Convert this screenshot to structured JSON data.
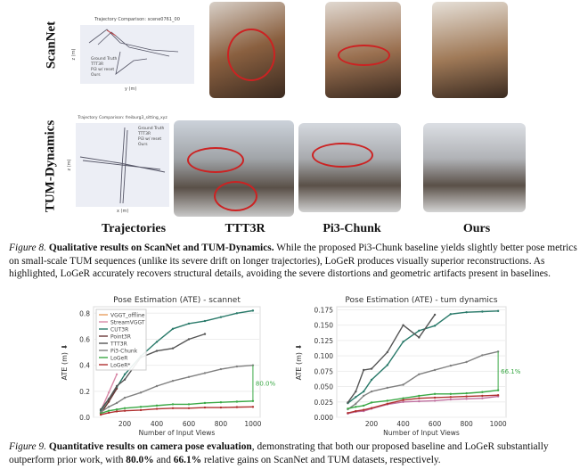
{
  "figure8": {
    "row_labels": [
      "ScanNet",
      "TUM-Dynamics"
    ],
    "col_labels": [
      "Trajectories",
      "TTT3R",
      "Pi3-Chunk",
      "Ours"
    ],
    "traj1": {
      "title": "Trajectory Comparison: scene0761_00",
      "xlabel": "y (m)",
      "ylabel": "z (m)",
      "legend": [
        "Ground Truth",
        "TTT3R",
        "Pi3 w/ reset",
        "Ours"
      ]
    },
    "traj2": {
      "title": "Trajectory Comparison: freiburg3_sitting_xyz",
      "xlabel": "x (m)",
      "ylabel": "z (m)",
      "legend": [
        "Ground Truth",
        "TTT3R",
        "Pi3 w/ reset",
        "Ours"
      ]
    },
    "caption_label": "Figure 8.",
    "caption_bold": "Qualitative results on ScanNet and TUM-Dynamics.",
    "caption_text": "While the proposed Pi3-Chunk baseline yields slightly better pose metrics on small-scale TUM sequences (unlike its severe drift on longer trajectories), LoGeR produces visually superior reconstructions. As highlighted, LoGeR accurately recovers structural details, avoiding the severe distortions and geometric artifacts present in baselines."
  },
  "figure9": {
    "caption_label": "Figure 9.",
    "caption_bold": "Quantitative results on camera pose evaluation",
    "caption_text1": ", demonstrating that both our proposed baseline and LoGeR substantially outperform prior work, with ",
    "gain1": "80.0%",
    "caption_text2": " and ",
    "gain2": "66.1%",
    "caption_text3": " relative gains on ScanNet and TUM datasets, respectively."
  },
  "chart_data": [
    {
      "type": "line",
      "title": "Pose Estimation (ATE) - scannet",
      "xlabel": "Number of Input Views",
      "ylabel": "ATE (m) ⬇",
      "xticks": [
        200,
        400,
        600,
        800,
        1000
      ],
      "yticks": [
        0.0,
        0.2,
        0.4,
        0.6,
        0.8
      ],
      "xlim": [
        5,
        1045
      ],
      "ylim": [
        0,
        0.85
      ],
      "legend": "top-left",
      "annotation": "80.0%",
      "series": [
        {
          "name": "VGGT_offline",
          "color": "#e8a060",
          "x": [
            50,
            100
          ],
          "y": [
            0.03,
            0.12
          ]
        },
        {
          "name": "StreamVGGT",
          "color": "#d88aa8",
          "x": [
            50,
            100,
            150
          ],
          "y": [
            0.05,
            0.19,
            0.33
          ]
        },
        {
          "name": "CUT3R",
          "color": "#2a7a6a",
          "x": [
            50,
            100,
            150,
            200,
            300,
            400,
            500,
            600,
            700,
            800,
            900,
            1000
          ],
          "y": [
            0.05,
            0.14,
            0.23,
            0.33,
            0.47,
            0.58,
            0.68,
            0.72,
            0.74,
            0.77,
            0.8,
            0.82
          ]
        },
        {
          "name": "Point3R",
          "color": "#6a3838",
          "x": [
            50,
            100,
            150
          ],
          "y": [
            0.03,
            0.12,
            0.22
          ]
        },
        {
          "name": "TTT3R",
          "color": "#555555",
          "x": [
            50,
            100,
            150,
            200,
            300,
            400,
            500,
            600,
            700
          ],
          "y": [
            0.06,
            0.14,
            0.24,
            0.29,
            0.46,
            0.51,
            0.53,
            0.6,
            0.64
          ]
        },
        {
          "name": "Pi3-Chunk",
          "color": "#808080",
          "x": [
            50,
            100,
            150,
            200,
            300,
            400,
            500,
            600,
            700,
            800,
            900,
            1000
          ],
          "y": [
            0.04,
            0.08,
            0.11,
            0.15,
            0.19,
            0.24,
            0.28,
            0.31,
            0.34,
            0.37,
            0.39,
            0.4
          ]
        },
        {
          "name": "LoGeR",
          "color": "#3aa845",
          "x": [
            50,
            100,
            150,
            200,
            300,
            400,
            500,
            600,
            700,
            800,
            900,
            1000
          ],
          "y": [
            0.03,
            0.05,
            0.06,
            0.07,
            0.08,
            0.09,
            0.1,
            0.1,
            0.11,
            0.115,
            0.12,
            0.125
          ]
        },
        {
          "name": "LoGeR*",
          "color": "#b03030",
          "x": [
            50,
            100,
            150,
            200,
            300,
            400,
            500,
            600,
            700,
            800,
            900,
            1000
          ],
          "y": [
            0.02,
            0.035,
            0.045,
            0.05,
            0.055,
            0.065,
            0.07,
            0.07,
            0.075,
            0.075,
            0.078,
            0.08
          ]
        }
      ]
    },
    {
      "type": "line",
      "title": "Pose Estimation (ATE) - tum dynamics",
      "xlabel": "Number of Input Views",
      "ylabel": "ATE (m) ⬇",
      "xticks": [
        200,
        400,
        600,
        800,
        1000
      ],
      "yticks": [
        0.0,
        0.025,
        0.05,
        0.075,
        0.1,
        0.125,
        0.15,
        0.175
      ],
      "xlim": [
        -20,
        1050
      ],
      "ylim": [
        0,
        0.18
      ],
      "annotation": "66.1%",
      "series": [
        {
          "name": "StreamVGGT",
          "color": "#c070a0",
          "x": [
            50,
            100,
            150,
            200,
            300,
            400,
            500,
            600,
            700,
            800,
            900,
            1000
          ],
          "y": [
            0.006,
            0.009,
            0.01,
            0.014,
            0.021,
            0.025,
            0.026,
            0.027,
            0.029,
            0.03,
            0.031,
            0.034
          ]
        },
        {
          "name": "CUT3R",
          "color": "#2a7a6a",
          "x": [
            50,
            100,
            150,
            200,
            300,
            400,
            500,
            600,
            700,
            800,
            900,
            1000
          ],
          "y": [
            0.023,
            0.033,
            0.042,
            0.061,
            0.085,
            0.123,
            0.141,
            0.149,
            0.168,
            0.171,
            0.172,
            0.173
          ]
        },
        {
          "name": "TTT3R",
          "color": "#555555",
          "x": [
            50,
            100,
            150,
            200,
            300,
            400,
            500,
            600
          ],
          "y": [
            0.024,
            0.042,
            0.077,
            0.079,
            0.106,
            0.15,
            0.13,
            0.167
          ]
        },
        {
          "name": "Pi3-Chunk",
          "color": "#808080",
          "x": [
            50,
            100,
            150,
            200,
            300,
            400,
            500,
            600,
            700,
            800,
            900,
            1000
          ],
          "y": [
            0.013,
            0.022,
            0.035,
            0.042,
            0.048,
            0.053,
            0.07,
            0.077,
            0.084,
            0.09,
            0.101,
            0.107
          ]
        },
        {
          "name": "LoGeR",
          "color": "#3aa845",
          "x": [
            50,
            100,
            150,
            200,
            300,
            400,
            500,
            600,
            700,
            800,
            900,
            1000
          ],
          "y": [
            0.014,
            0.017,
            0.019,
            0.024,
            0.027,
            0.031,
            0.035,
            0.038,
            0.038,
            0.039,
            0.041,
            0.044
          ]
        },
        {
          "name": "LoGeR*",
          "color": "#b03030",
          "x": [
            50,
            100,
            150,
            200,
            300,
            400,
            500,
            600,
            700,
            800,
            900,
            1000
          ],
          "y": [
            0.007,
            0.01,
            0.012,
            0.015,
            0.022,
            0.028,
            0.031,
            0.032,
            0.033,
            0.034,
            0.035,
            0.036
          ]
        }
      ]
    }
  ]
}
